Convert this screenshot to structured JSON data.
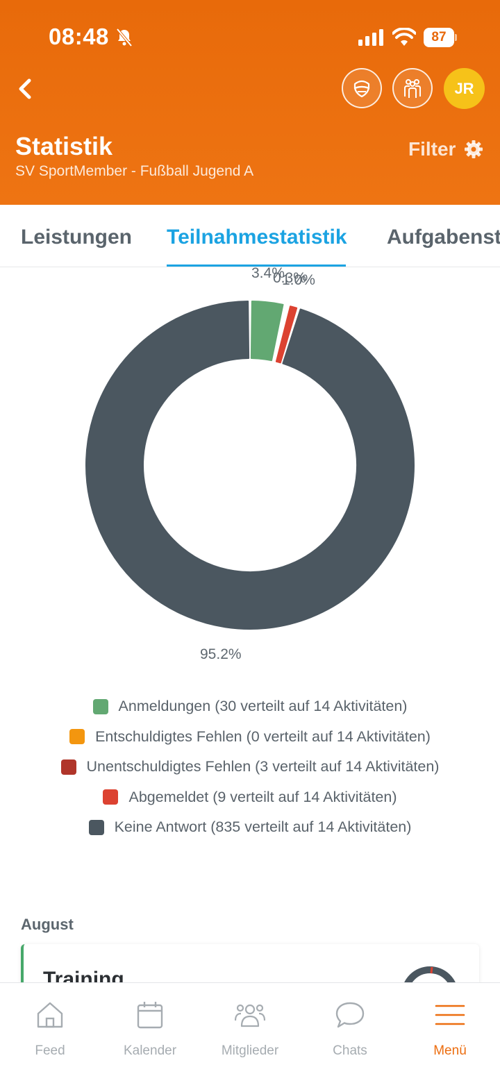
{
  "status_bar": {
    "time": "08:48",
    "battery": "87"
  },
  "header": {
    "title": "Statistik",
    "subtitle": "SV SportMember - Fußball Jugend A",
    "filter_label": "Filter",
    "avatar_initials": "JR"
  },
  "tabs": [
    {
      "label": "Leistungen"
    },
    {
      "label": "Teilnahmestatistik"
    },
    {
      "label": "Aufgabenstatistik"
    }
  ],
  "chart_data": {
    "type": "pie",
    "categories": [
      "Anmeldungen",
      "Entschuldigtes Fehlen",
      "Unentschuldigtes Fehlen",
      "Abgemeldet",
      "Keine Antwort"
    ],
    "values": [
      30,
      0,
      3,
      9,
      835
    ],
    "percent_labels": [
      "3.4%",
      "0.3%",
      "1.0%",
      "95.2%"
    ],
    "colors": [
      "#62a872",
      "#f3960f",
      "#b0352a",
      "#dc4231",
      "#4b5760"
    ]
  },
  "legend": [
    "Anmeldungen (30 verteilt auf 14 Aktivitäten)",
    "Entschuldigtes Fehlen (0 verteilt auf 14 Aktivitäten)",
    "Unentschuldigtes Fehlen (3 verteilt auf 14 Aktivitäten)",
    "Abgemeldet (9 verteilt auf 14 Aktivitäten)",
    "Keine Antwort (835 verteilt auf 14 Aktivitäten)"
  ],
  "month": "August",
  "card": {
    "title": "Training"
  },
  "nav": [
    {
      "label": "Feed",
      "icon": "home-icon"
    },
    {
      "label": "Kalender",
      "icon": "calendar-icon"
    },
    {
      "label": "Mitglieder",
      "icon": "members-icon"
    },
    {
      "label": "Chats",
      "icon": "chat-icon"
    },
    {
      "label": "Menü",
      "icon": "menu-icon",
      "active": true
    }
  ]
}
